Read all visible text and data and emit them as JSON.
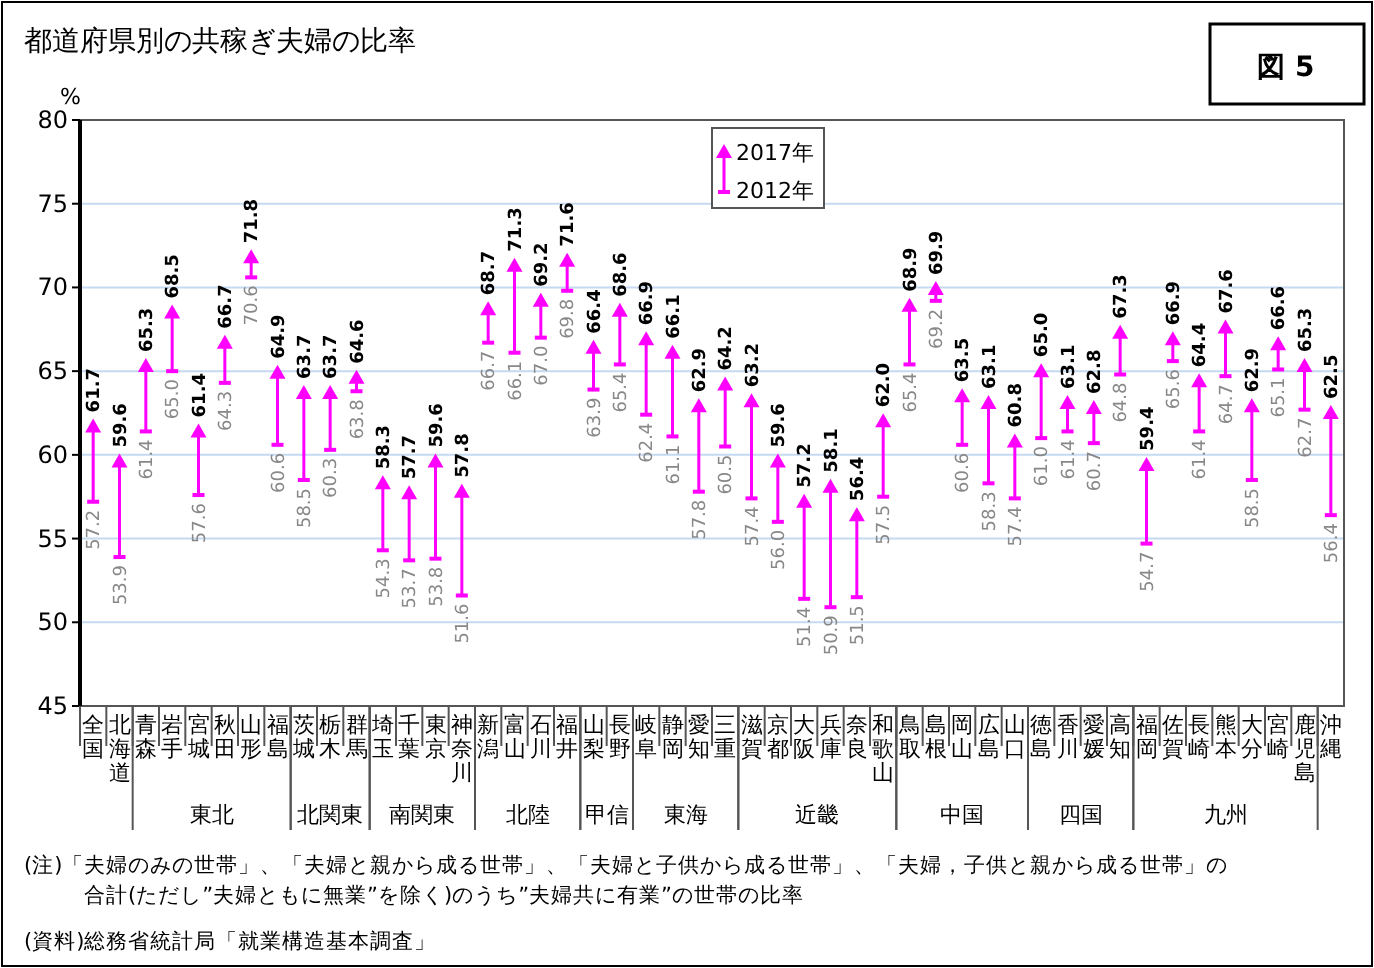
{
  "chart_data": {
    "type": "scatter",
    "title": "都道府県別の共稼ぎ夫婦の比率",
    "ylabel": "%",
    "categories": [
      "全国",
      "北海道",
      "青森",
      "岩手",
      "宮城",
      "秋田",
      "山形",
      "福島",
      "茨城",
      "栃木",
      "群馬",
      "埼玉",
      "千葉",
      "東京",
      "神奈川",
      "新潟",
      "富山",
      "石川",
      "福井",
      "山梨",
      "長野",
      "岐阜",
      "静岡",
      "愛知",
      "三重",
      "滋賀",
      "京都",
      "大阪",
      "兵庫",
      "奈良",
      "和歌山",
      "鳥取",
      "島根",
      "岡山",
      "広島",
      "山口",
      "徳島",
      "香川",
      "愛媛",
      "高知",
      "福岡",
      "佐賀",
      "長崎",
      "熊本",
      "大分",
      "宮崎",
      "鹿児島",
      "沖縄"
    ],
    "series": [
      {
        "name": "2017年",
        "color": "#ff00ff",
        "marker": "triangle",
        "values": [
          61.7,
          59.6,
          65.3,
          68.5,
          61.4,
          66.7,
          71.8,
          64.9,
          63.7,
          63.7,
          64.6,
          58.3,
          57.7,
          59.6,
          57.8,
          68.7,
          71.3,
          69.2,
          71.6,
          66.4,
          68.6,
          66.9,
          66.1,
          62.9,
          64.2,
          63.2,
          59.6,
          57.2,
          58.1,
          56.4,
          62.0,
          68.9,
          69.9,
          63.5,
          63.1,
          60.8,
          65.0,
          63.1,
          62.8,
          67.3,
          59.4,
          66.9,
          64.4,
          67.6,
          62.9,
          66.6,
          65.3,
          62.5
        ],
        "value_labels": [
          "61.7",
          "59.6",
          "65.3",
          "68.5",
          "61.4",
          "66.7",
          "71.8",
          "64.9",
          "63.7",
          "63.7",
          "64.6",
          "58.3",
          "57.7",
          "59.6",
          "57.8",
          "68.7",
          "71.3",
          "69.2",
          "71.6",
          "66.4",
          "68.6",
          "66.9",
          "66.1",
          "62.9",
          "64.2",
          "63.2",
          "59.6",
          "57.2",
          "58.1",
          "56.4",
          "62.0",
          "68.9",
          "69.9",
          "63.5",
          "63.1",
          "60.8",
          "65.0",
          "63.1",
          "62.8",
          "67.3",
          "59.4",
          "66.9",
          "64.4",
          "67.6",
          "62.9",
          "66.6",
          "65.3",
          "62.5"
        ]
      },
      {
        "name": "2012年",
        "color": "#ff00ff",
        "values": [
          57.2,
          53.9,
          61.4,
          65.0,
          57.6,
          64.3,
          70.6,
          60.6,
          58.5,
          60.3,
          63.8,
          54.3,
          53.7,
          53.8,
          51.6,
          66.7,
          66.1,
          67.0,
          69.8,
          63.9,
          65.4,
          62.4,
          61.1,
          57.8,
          60.5,
          57.4,
          56.0,
          51.4,
          50.9,
          51.5,
          57.5,
          65.4,
          69.2,
          60.6,
          58.3,
          57.4,
          61.0,
          61.4,
          60.7,
          64.8,
          54.7,
          65.6,
          61.4,
          64.7,
          58.5,
          65.1,
          62.7,
          56.4
        ],
        "value_labels": [
          "57.2",
          "53.9",
          "61.4",
          "65.0",
          "57.6",
          "64.3",
          "70.6",
          "60.6",
          "58.5",
          "60.3",
          "63.8",
          "54.3",
          "53.7",
          "53.8",
          "51.6",
          "66.7",
          "66.1",
          "67.0",
          "69.8",
          "63.9",
          "65.4",
          "62.4",
          "61.1",
          "57.8",
          "60.5",
          "57.4",
          "56.0",
          "51.4",
          "50.9",
          "51.5",
          "57.5",
          "65.4",
          "69.2",
          "60.6",
          "58.3",
          "57.4",
          "61.0",
          "61.4",
          "60.7",
          "64.8",
          "54.7",
          "65.6",
          "61.4",
          "64.7",
          "58.5",
          "65.1",
          "62.7",
          "56.4"
        ]
      }
    ],
    "ylim": [
      45,
      80
    ],
    "yticks": [
      45,
      50,
      55,
      60,
      65,
      70,
      75,
      80
    ],
    "grid": "y",
    "legend": "top",
    "annotations": [
      "東北",
      "北関東",
      "南関東",
      "北陸",
      "甲信",
      "東海",
      "近畿",
      "中国",
      "四国",
      "九州",
      "図 5",
      "(注)「夫婦のみの世帯」、「夫婦と親から成る世帯」、「夫婦と子供から成る世帯」、「夫婦，子供と親から成る世帯」の",
      "合計(ただし”夫婦ともに無業”を除く)のうち”夫婦共に有業”の世帯の比率",
      "(資料)総務省統計局「就業構造基本調査」"
    ]
  }
}
